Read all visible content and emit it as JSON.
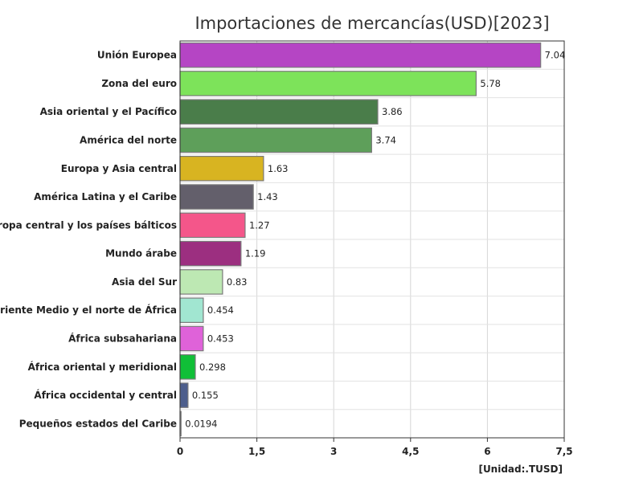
{
  "chart_data": {
    "type": "bar",
    "orientation": "horizontal",
    "title": "Importaciones de mercancías(USD)[2023]",
    "unit_label": "[Unidad:.TUSD]",
    "categories": [
      "Unión Europea",
      "Zona del euro",
      "Asia oriental y el Pacífico",
      "América del norte",
      "Europa y Asia central",
      "América Latina y el Caribe",
      "Europa central y los países bálticos",
      "Mundo árabe",
      "Asia del Sur",
      "Oriente Medio y el norte de África",
      "África subsahariana",
      "África oriental y meridional",
      "África occidental y central",
      "Pequeños estados del Caribe"
    ],
    "values": [
      7.04,
      5.78,
      3.86,
      3.74,
      1.63,
      1.43,
      1.27,
      1.19,
      0.83,
      0.454,
      0.453,
      0.298,
      0.155,
      0.0194
    ],
    "value_labels": [
      "7.04",
      "5.78",
      "3.86",
      "3.74",
      "1.63",
      "1.43",
      "1.27",
      "1.19",
      "0.83",
      "0.454",
      "0.453",
      "0.298",
      "0.155",
      "0.0194"
    ],
    "colors": [
      "#b545c4",
      "#7de35a",
      "#4a7d4a",
      "#5e9f5a",
      "#d8b421",
      "#635f6b",
      "#f4568a",
      "#9c2f80",
      "#bde8b3",
      "#a1e6d1",
      "#df62d9",
      "#10bf37",
      "#4d5e8c",
      "#d0d0d0"
    ],
    "xlim": [
      0,
      7.5
    ],
    "xticks": [
      0,
      1.5,
      3,
      4.5,
      6,
      7.5
    ],
    "xtick_labels": [
      "0",
      "1,5",
      "3",
      "4,5",
      "6",
      "7,5"
    ],
    "grid": true,
    "legend": "none"
  }
}
